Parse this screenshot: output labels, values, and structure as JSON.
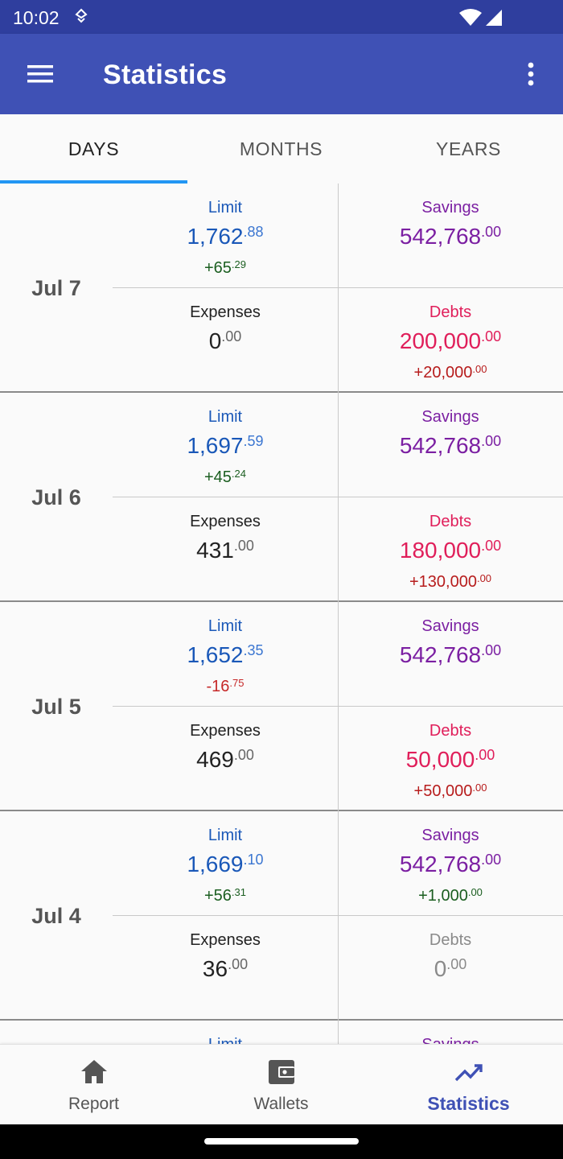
{
  "status_bar": {
    "time": "10:02"
  },
  "app_bar": {
    "title": "Statistics"
  },
  "tabs": [
    {
      "label": "DAYS",
      "active": true
    },
    {
      "label": "MONTHS",
      "active": false
    },
    {
      "label": "YEARS",
      "active": false
    }
  ],
  "days": [
    {
      "date": "Jul 7",
      "limit": {
        "label": "Limit",
        "int": "1,762",
        "dec": ".88",
        "change_int": "+65",
        "change_dec": ".29"
      },
      "savings": {
        "label": "Savings",
        "int": "542,768",
        "dec": ".00",
        "change_int": "",
        "change_dec": ""
      },
      "expenses": {
        "label": "Expenses",
        "int": "0",
        "dec": ".00"
      },
      "debts": {
        "label": "Debts",
        "int": "200,000",
        "dec": ".00",
        "change_int": "+20,000",
        "change_dec": ".00"
      }
    },
    {
      "date": "Jul 6",
      "limit": {
        "label": "Limit",
        "int": "1,697",
        "dec": ".59",
        "change_int": "+45",
        "change_dec": ".24"
      },
      "savings": {
        "label": "Savings",
        "int": "542,768",
        "dec": ".00",
        "change_int": "",
        "change_dec": ""
      },
      "expenses": {
        "label": "Expenses",
        "int": "431",
        "dec": ".00"
      },
      "debts": {
        "label": "Debts",
        "int": "180,000",
        "dec": ".00",
        "change_int": "+130,000",
        "change_dec": ".00"
      }
    },
    {
      "date": "Jul 5",
      "limit": {
        "label": "Limit",
        "int": "1,652",
        "dec": ".35",
        "change_int": "-16",
        "change_dec": ".75"
      },
      "savings": {
        "label": "Savings",
        "int": "542,768",
        "dec": ".00",
        "change_int": "",
        "change_dec": ""
      },
      "expenses": {
        "label": "Expenses",
        "int": "469",
        "dec": ".00"
      },
      "debts": {
        "label": "Debts",
        "int": "50,000",
        "dec": ".00",
        "change_int": "+50,000",
        "change_dec": ".00"
      }
    },
    {
      "date": "Jul 4",
      "limit": {
        "label": "Limit",
        "int": "1,669",
        "dec": ".10",
        "change_int": "+56",
        "change_dec": ".31"
      },
      "savings": {
        "label": "Savings",
        "int": "542,768",
        "dec": ".00",
        "change_int": "+1,000",
        "change_dec": ".00"
      },
      "expenses": {
        "label": "Expenses",
        "int": "36",
        "dec": ".00"
      },
      "debts": {
        "label": "Debts",
        "int": "0",
        "dec": ".00",
        "change_int": "",
        "change_dec": ""
      }
    }
  ],
  "partial_row": {
    "limit_label": "Limit",
    "savings_label": "Savings"
  },
  "bottom_nav": [
    {
      "label": "Report",
      "icon": "home-icon",
      "active": false
    },
    {
      "label": "Wallets",
      "icon": "wallet-icon",
      "active": false
    },
    {
      "label": "Statistics",
      "icon": "trending-up-icon",
      "active": true
    }
  ],
  "colors": {
    "app_bar": "#3f51b5",
    "status_bar": "#2f3e9e",
    "tab_indicator": "#2196f3",
    "limit": "#1a58b8",
    "savings": "#7b1fa2",
    "debts": "#e01e5a",
    "positive_change": "#1b5e20",
    "negative_change": "#c62828"
  }
}
